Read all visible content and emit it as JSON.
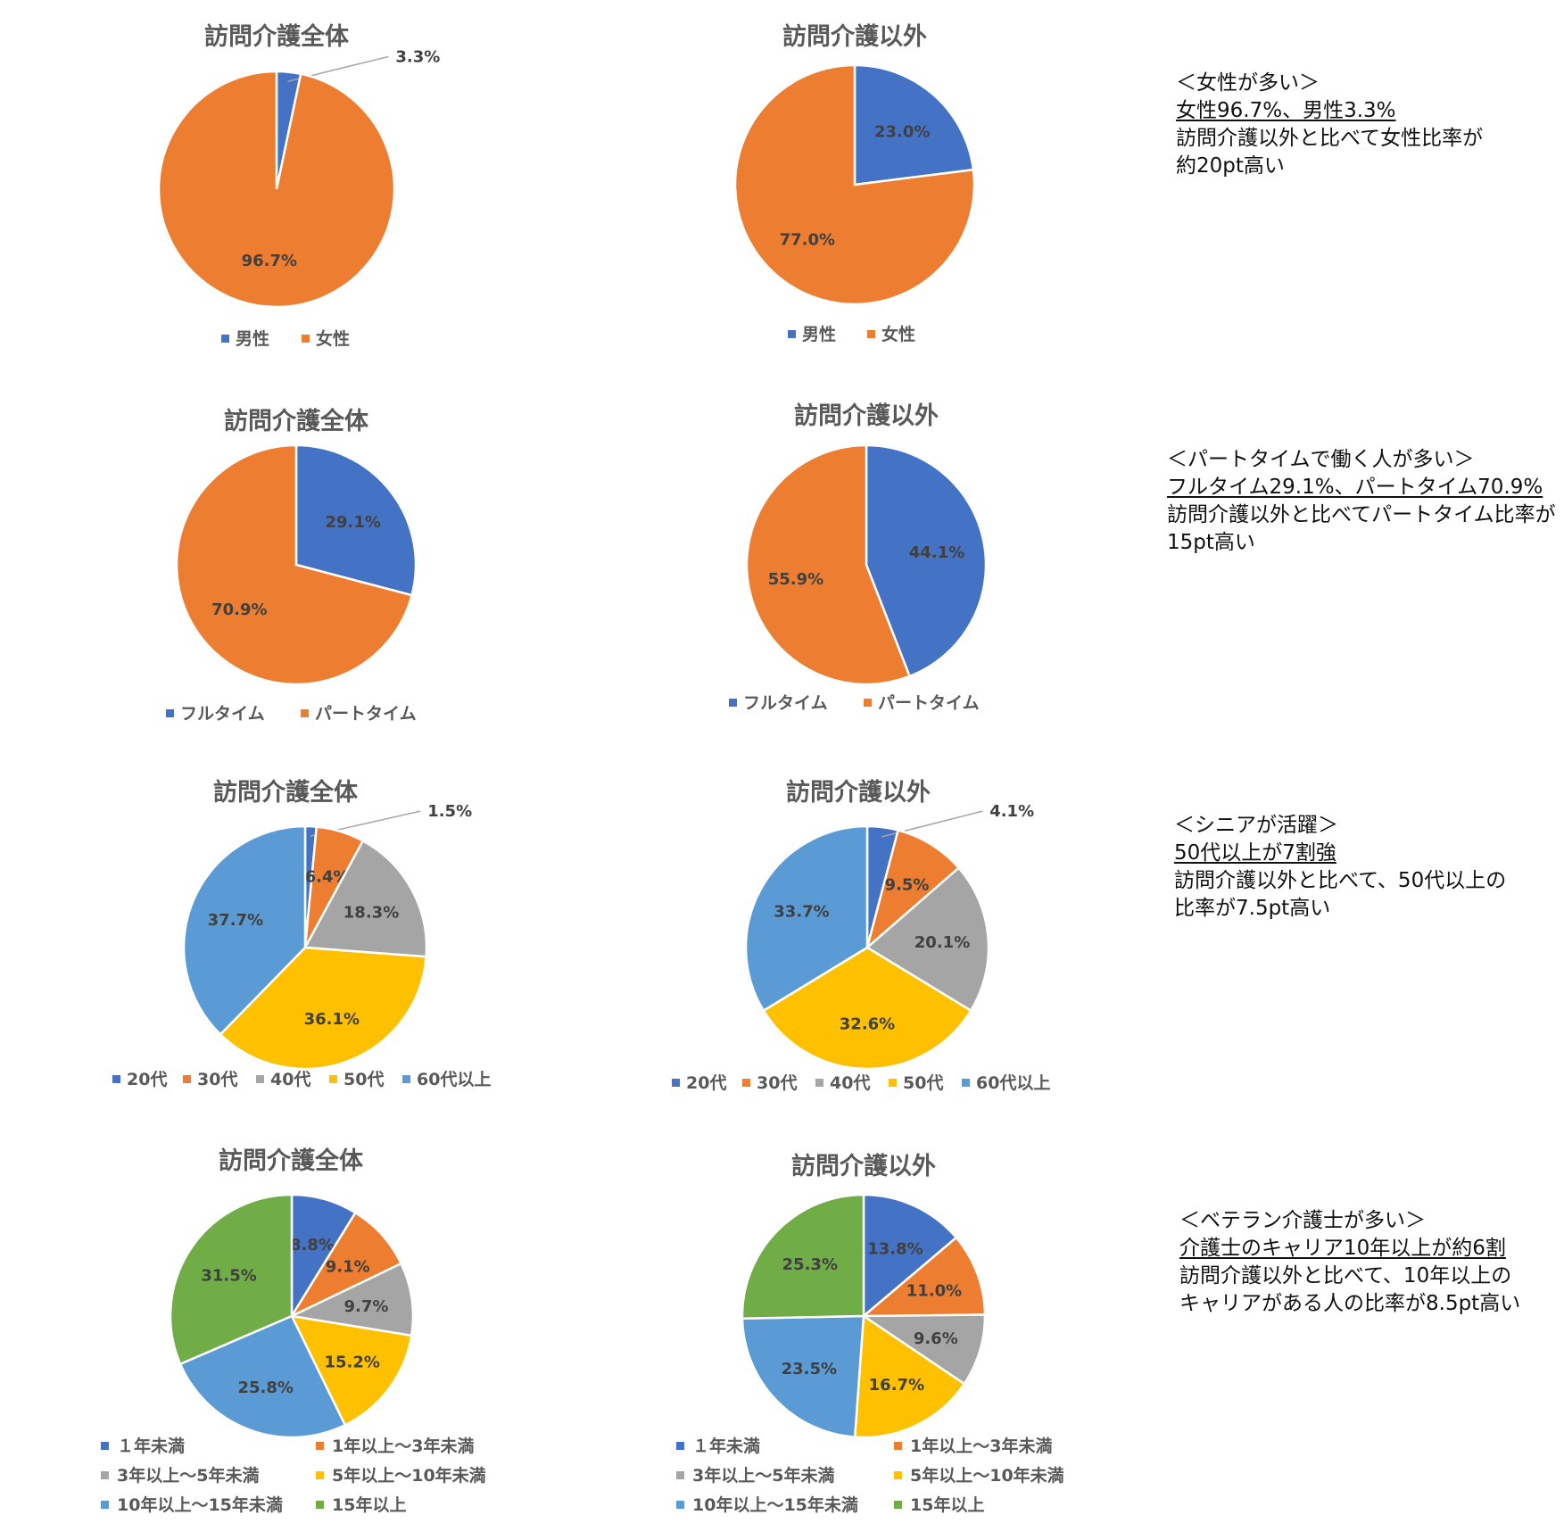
{
  "colors": {
    "blue": "#4472C4",
    "orange": "#ED7D31",
    "gray": "#A5A5A5",
    "gold": "#FFC000",
    "lightblue": "#5B9BD5",
    "green": "#70AD47",
    "label_text": "#404040",
    "title_text": "#595959"
  },
  "chart_data": [
    {
      "id": "gender-total",
      "type": "pie",
      "title": "訪問介護全体",
      "categories": [
        "男性",
        "女性"
      ],
      "values": [
        3.3,
        96.7
      ],
      "labels": [
        "3.3%",
        "96.7%"
      ],
      "legend": "bottom"
    },
    {
      "id": "gender-other",
      "type": "pie",
      "title": "訪問介護以外",
      "categories": [
        "男性",
        "女性"
      ],
      "values": [
        23.0,
        77.0
      ],
      "labels": [
        "23.0%",
        "77.0%"
      ],
      "legend": "bottom"
    },
    {
      "id": "employment-total",
      "type": "pie",
      "title": "訪問介護全体",
      "categories": [
        "フルタイム",
        "パートタイム"
      ],
      "values": [
        29.1,
        70.9
      ],
      "labels": [
        "29.1%",
        "70.9%"
      ],
      "legend": "bottom"
    },
    {
      "id": "employment-other",
      "type": "pie",
      "title": "訪問介護以外",
      "categories": [
        "フルタイム",
        "パートタイム"
      ],
      "values": [
        44.1,
        55.9
      ],
      "labels": [
        "44.1%",
        "55.9%"
      ],
      "legend": "bottom"
    },
    {
      "id": "age-total",
      "type": "pie",
      "title": "訪問介護全体",
      "categories": [
        "20代",
        "30代",
        "40代",
        "50代",
        "60代以上"
      ],
      "values": [
        1.5,
        6.4,
        18.3,
        36.1,
        37.7
      ],
      "labels": [
        "1.5%",
        "6.4%",
        "18.3%",
        "36.1%",
        "37.7%"
      ],
      "legend": "bottom"
    },
    {
      "id": "age-other",
      "type": "pie",
      "title": "訪問介護以外",
      "categories": [
        "20代",
        "30代",
        "40代",
        "50代",
        "60代以上"
      ],
      "values": [
        4.1,
        9.5,
        20.1,
        32.6,
        33.7
      ],
      "labels": [
        "4.1%",
        "9.5%",
        "20.1%",
        "32.6%",
        "33.7%"
      ],
      "legend": "bottom"
    },
    {
      "id": "career-total",
      "type": "pie",
      "title": "訪問介護全体",
      "categories": [
        "１年未満",
        "1年以上～3年未満",
        "3年以上～5年未満",
        "5年以上～10年未満",
        "10年以上～15年未満",
        "15年以上"
      ],
      "values": [
        8.8,
        9.1,
        9.7,
        15.2,
        25.8,
        31.5
      ],
      "labels": [
        "8.8%",
        "9.1%",
        "9.7%",
        "15.2%",
        "25.8%",
        "31.5%"
      ],
      "legend": "bottom"
    },
    {
      "id": "career-other",
      "type": "pie",
      "title": "訪問介護以外",
      "categories": [
        "１年未満",
        "1年以上～3年未満",
        "3年以上～5年未満",
        "5年以上～10年未満",
        "10年以上～15年未満",
        "15年以上"
      ],
      "values": [
        13.8,
        11.0,
        9.6,
        16.7,
        23.5,
        25.3
      ],
      "labels": [
        "13.8%",
        "11.0%",
        "9.6%",
        "16.7%",
        "23.5%",
        "25.3%"
      ],
      "legend": "bottom"
    }
  ],
  "notes": [
    {
      "heading": "＜女性が多い＞",
      "highlight": "女性96.7%、男性3.3%",
      "body": [
        "訪問介護以外と比べて女性比率が",
        "約20pt高い"
      ]
    },
    {
      "heading": "＜パートタイムで働く人が多い＞",
      "highlight": "フルタイム29.1%、パートタイム70.9%",
      "body": [
        "訪問介護以外と比べてパートタイム比率が",
        "15pt高い"
      ]
    },
    {
      "heading": "＜シニアが活躍＞",
      "highlight": "50代以上が7割強",
      "body": [
        "訪問介護以外と比べて、50代以上の",
        "比率が7.5pt高い"
      ]
    },
    {
      "heading": "＜ベテラン介護士が多い＞",
      "highlight": "介護士のキャリア10年以上が約6割",
      "body": [
        "訪問介護以外と比べて、10年以上の",
        "キャリアがある人の比率が8.5pt高い"
      ]
    }
  ]
}
